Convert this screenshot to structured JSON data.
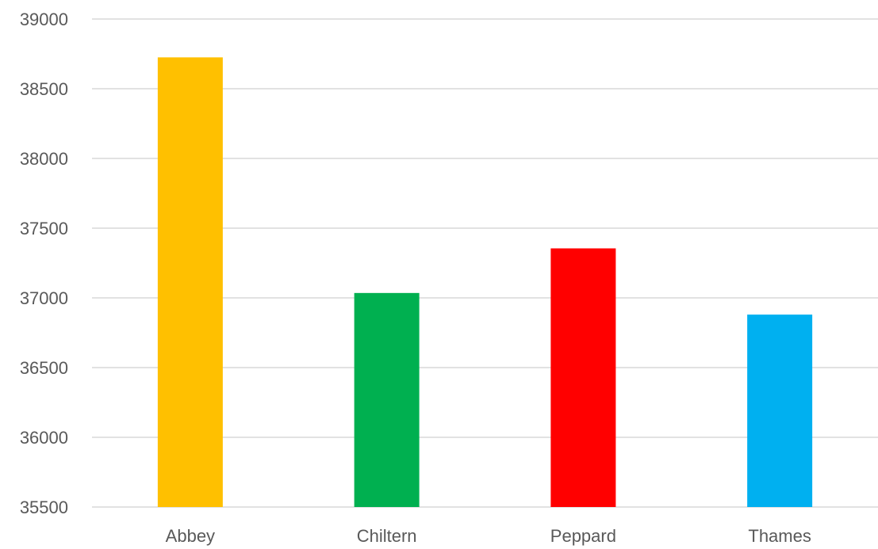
{
  "chart_data": {
    "type": "bar",
    "categories": [
      "Abbey",
      "Chiltern",
      "Peppard",
      "Thames"
    ],
    "values": [
      38725,
      37035,
      37355,
      36880
    ],
    "bar_colors": [
      "#FFC000",
      "#00B050",
      "#FF0000",
      "#00B0F0"
    ],
    "yticks": [
      "35500",
      "36000",
      "36500",
      "37000",
      "37500",
      "38000",
      "38500",
      "39000"
    ],
    "ylim": [
      35500,
      39000
    ],
    "grid": true,
    "legend": "none"
  }
}
